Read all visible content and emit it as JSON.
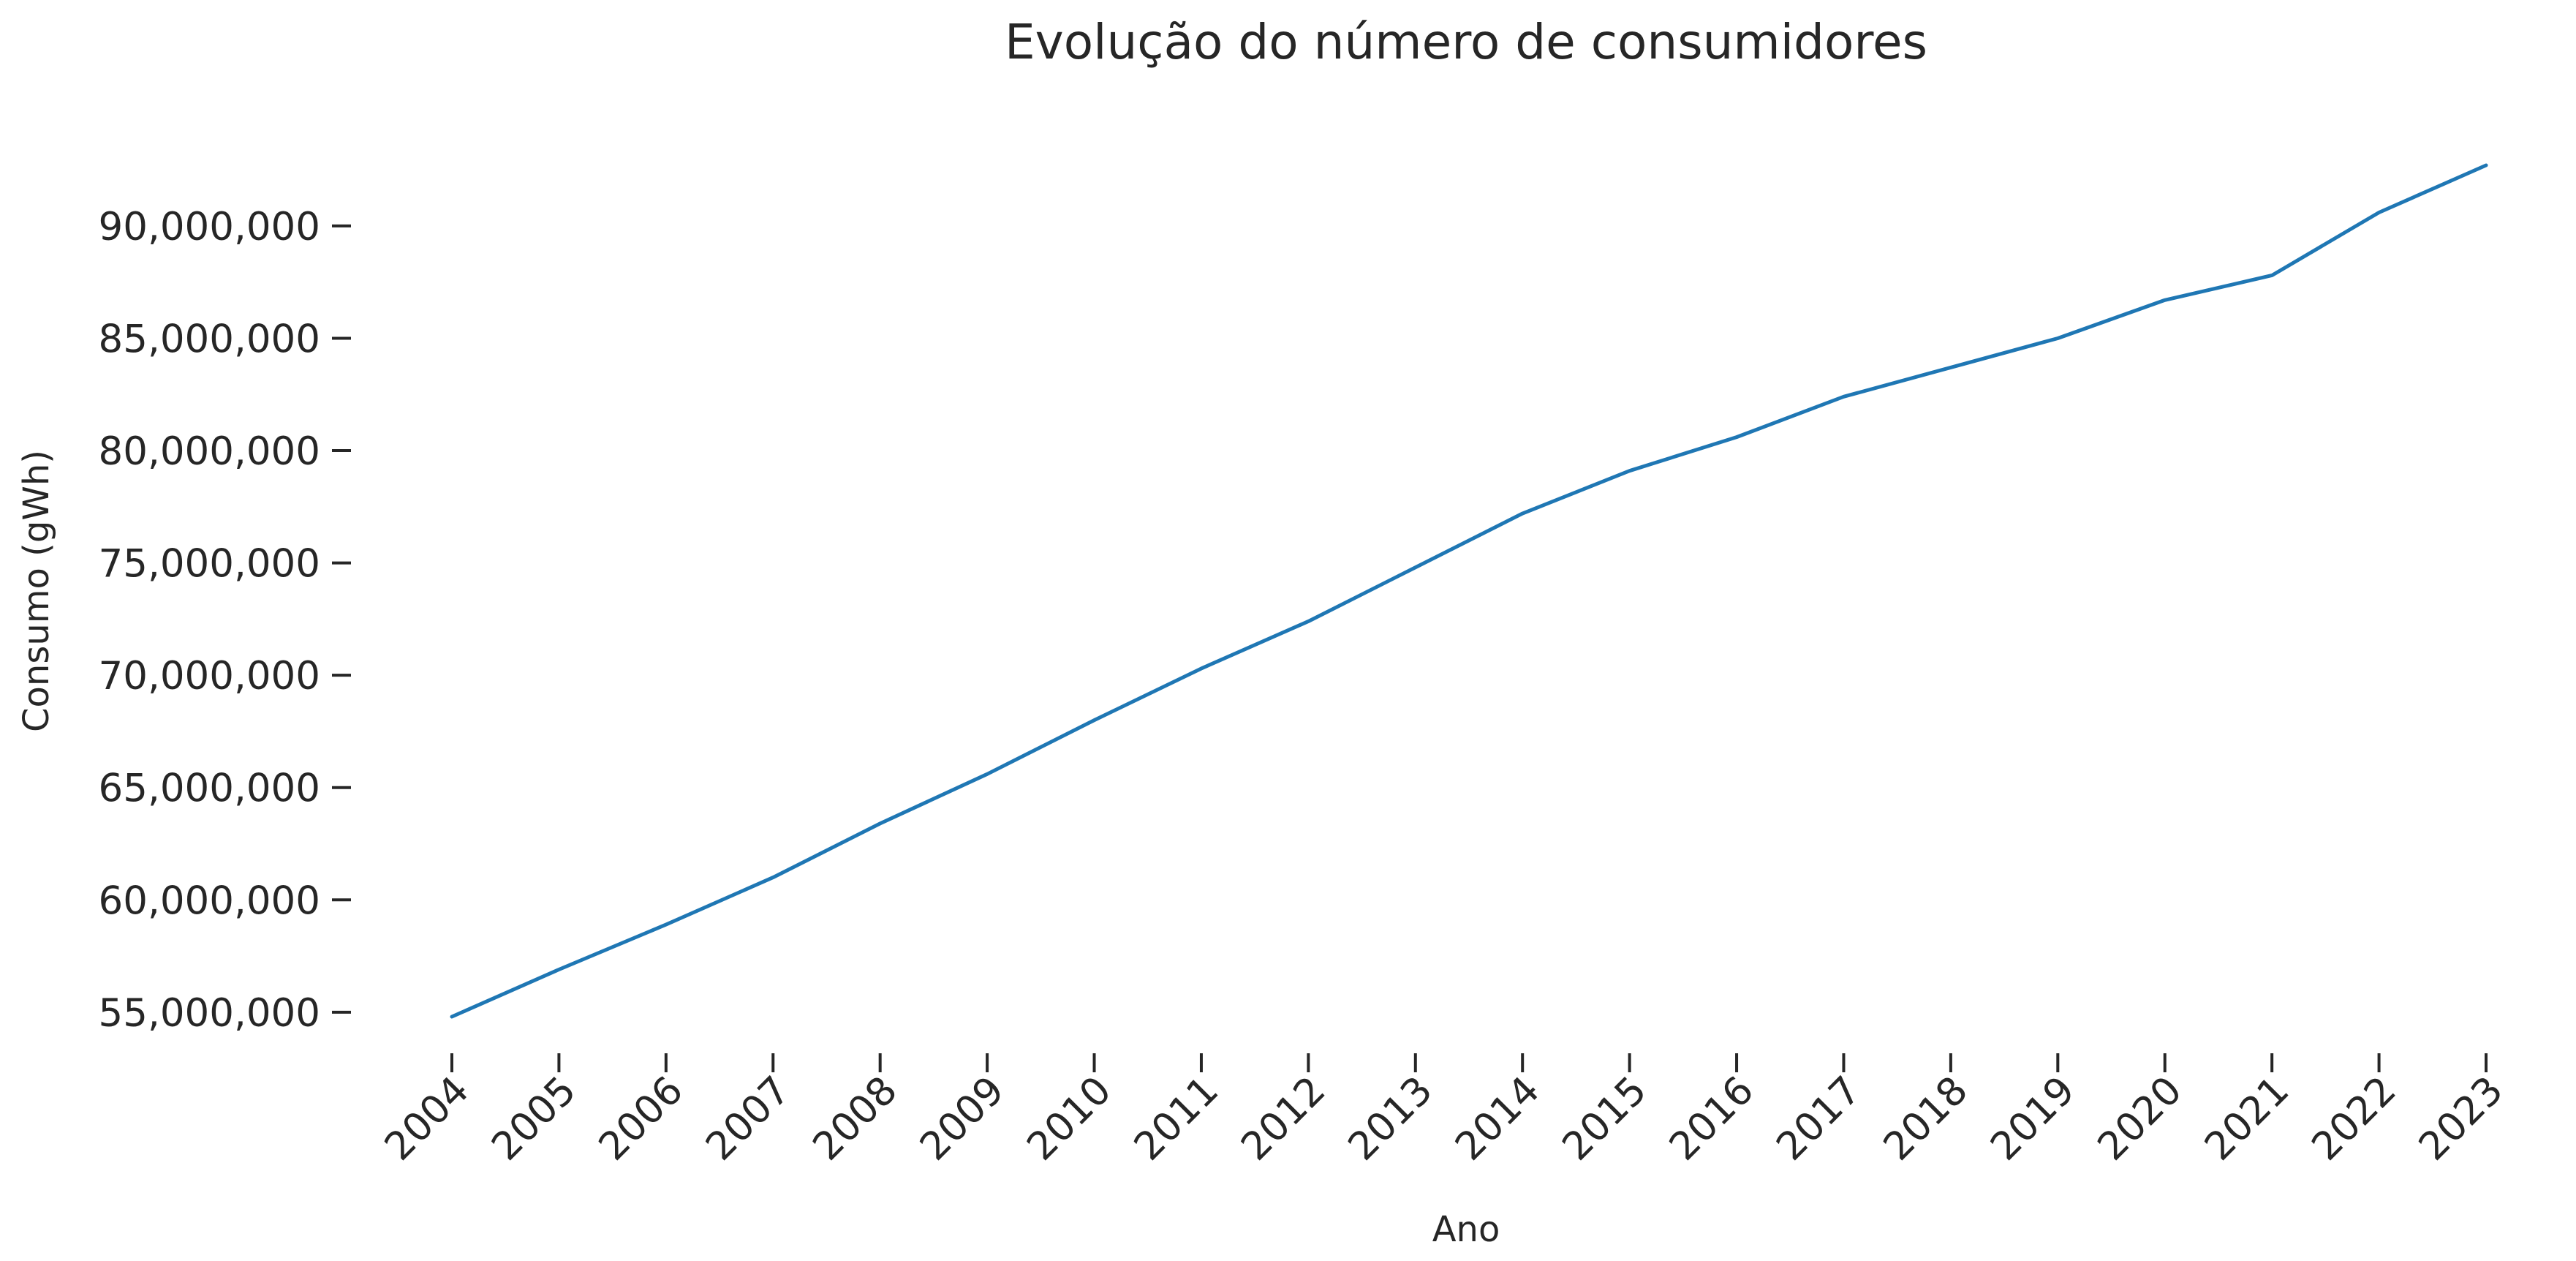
{
  "chart_data": {
    "type": "line",
    "title": "Evolução do número de consumidores",
    "xlabel": "Ano",
    "ylabel": "Consumo (gWh)",
    "x": [
      2004,
      2005,
      2006,
      2007,
      2008,
      2009,
      2010,
      2011,
      2012,
      2013,
      2014,
      2015,
      2016,
      2017,
      2018,
      2019,
      2020,
      2021,
      2022,
      2023
    ],
    "x_tick_labels": [
      "2004",
      "2005",
      "2006",
      "2007",
      "2008",
      "2009",
      "2010",
      "2011",
      "2012",
      "2013",
      "2014",
      "2015",
      "2016",
      "2017",
      "2018",
      "2019",
      "2020",
      "2021",
      "2022",
      "2023"
    ],
    "x_tick_rotation_deg": -45,
    "series": [
      {
        "color": "#1f77b4",
        "values": [
          54800000,
          56900000,
          58900000,
          61000000,
          63400000,
          65600000,
          68000000,
          70300000,
          72400000,
          74800000,
          77200000,
          79100000,
          80600000,
          82400000,
          83700000,
          85000000,
          86700000,
          87800000,
          90600000,
          92700000
        ]
      }
    ],
    "y_ticks": [
      55000000,
      60000000,
      65000000,
      70000000,
      75000000,
      80000000,
      85000000,
      90000000
    ],
    "y_tick_labels": [
      "55,000,000",
      "60,000,000",
      "65,000,000",
      "70,000,000",
      "75,000,000",
      "80,000,000",
      "85,000,000",
      "90,000,000"
    ],
    "xlim": [
      2004,
      2023
    ],
    "ylim": [
      54800000,
      92700000
    ],
    "grid": false,
    "legend": "none"
  }
}
